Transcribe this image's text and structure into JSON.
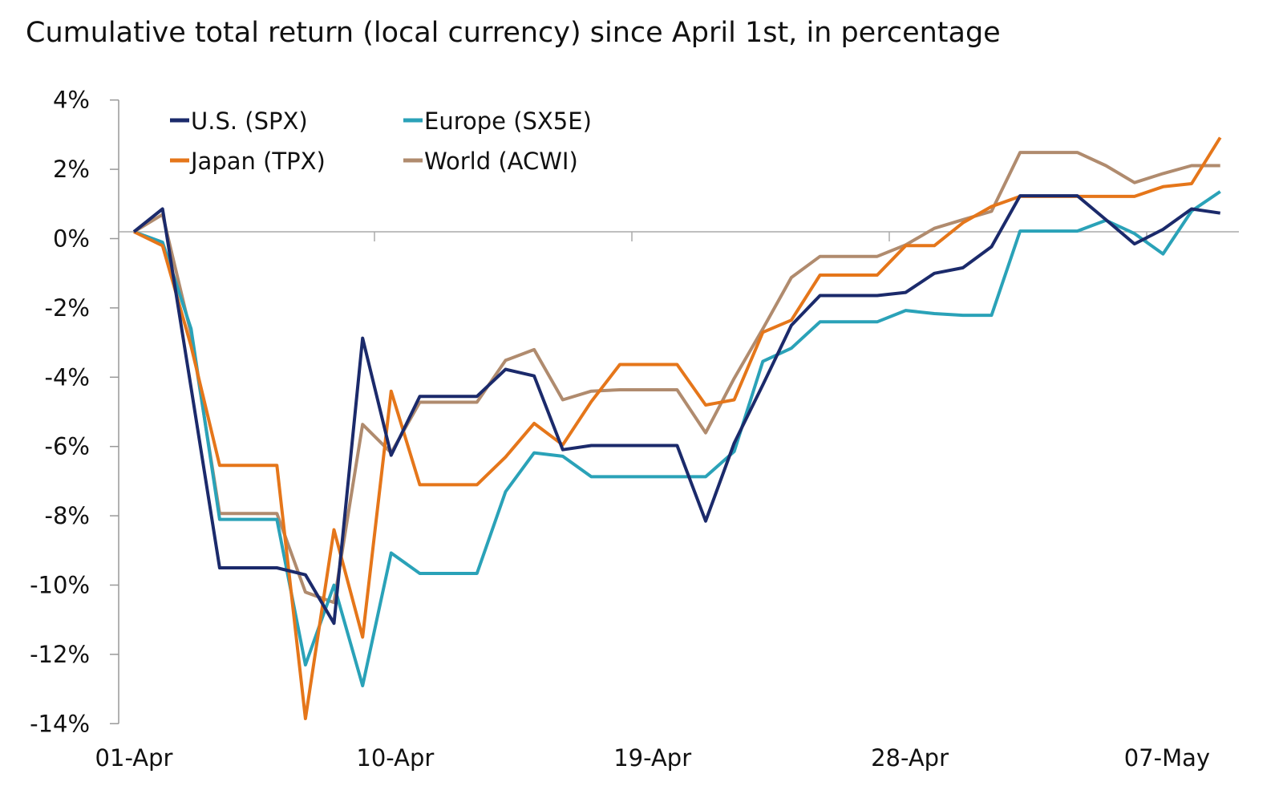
{
  "chart_data": {
    "type": "line",
    "title": "Cumulative total return (local currency) since April 1st, in percentage",
    "xlabel": "",
    "ylabel": "",
    "ylim": [
      -14,
      4
    ],
    "y_ticks": [
      "4%",
      "2%",
      "0%",
      "-2%",
      "-4%",
      "-6%",
      "-8%",
      "-10%",
      "-12%",
      "-14%"
    ],
    "y_tick_values": [
      4,
      2,
      0,
      -2,
      -4,
      -6,
      -8,
      -10,
      -12,
      -14
    ],
    "x_ticks": [
      "01-Apr",
      "10-Apr",
      "19-Apr",
      "28-Apr",
      "07-May"
    ],
    "x_tick_index": [
      0,
      9,
      18,
      27,
      36
    ],
    "grid": false,
    "legend_position": "top-left",
    "x": [
      "01-Apr",
      "02-Apr",
      "03-Apr",
      "04-Apr",
      "05-Apr",
      "06-Apr",
      "07-Apr",
      "08-Apr",
      "09-Apr",
      "10-Apr",
      "11-Apr",
      "12-Apr",
      "13-Apr",
      "14-Apr",
      "15-Apr",
      "16-Apr",
      "17-Apr",
      "18-Apr",
      "19-Apr",
      "20-Apr",
      "21-Apr",
      "22-Apr",
      "23-Apr",
      "24-Apr",
      "25-Apr",
      "26-Apr",
      "27-Apr",
      "28-Apr",
      "29-Apr",
      "30-Apr",
      "01-May",
      "02-May",
      "03-May",
      "04-May",
      "05-May",
      "06-May",
      "07-May",
      "08-May",
      "09-May"
    ],
    "series": [
      {
        "name": "U.S. (SPX)",
        "color": "#1b2a6b",
        "values": [
          0,
          0.66,
          -4.5,
          -9.7,
          -9.7,
          -9.7,
          -9.9,
          -11.3,
          -3.07,
          -6.45,
          -4.75,
          -4.75,
          -4.75,
          -3.97,
          -4.16,
          -6.29,
          -6.17,
          -6.17,
          -6.17,
          -6.17,
          -8.35,
          -6.1,
          -4.42,
          -2.7,
          -1.84,
          -1.84,
          -1.84,
          -1.75,
          -1.2,
          -1.04,
          -0.43,
          1.04,
          1.04,
          1.04,
          0.35,
          -0.35,
          0.07,
          0.66,
          0.54
        ]
      },
      {
        "name": "Europe (SX5E)",
        "color": "#2aa2b8",
        "values": [
          0,
          -0.3,
          -2.8,
          -8.3,
          -8.3,
          -8.3,
          -12.5,
          -10.2,
          -13.1,
          -9.27,
          -9.86,
          -9.86,
          -9.86,
          -7.5,
          -6.38,
          -6.48,
          -7.07,
          -7.07,
          -7.07,
          -7.07,
          -7.07,
          -6.34,
          -3.74,
          -3.36,
          -2.6,
          -2.6,
          -2.6,
          -2.27,
          -2.36,
          -2.41,
          -2.41,
          0.02,
          0.02,
          0.02,
          0.33,
          -0.05,
          -0.64,
          0.6,
          1.16
        ]
      },
      {
        "name": "Japan (TPX)",
        "color": "#e5761a",
        "values": [
          0,
          -0.4,
          -3.3,
          -6.74,
          -6.74,
          -6.74,
          -14.05,
          -8.6,
          -11.7,
          -4.6,
          -7.3,
          -7.3,
          -7.3,
          -6.5,
          -5.53,
          -6.15,
          -4.9,
          -3.83,
          -3.83,
          -3.83,
          -5.0,
          -4.85,
          -2.9,
          -2.55,
          -1.25,
          -1.25,
          -1.25,
          -0.4,
          -0.4,
          0.26,
          0.73,
          1.02,
          1.02,
          1.02,
          1.02,
          1.02,
          1.3,
          1.39,
          2.72
        ]
      },
      {
        "name": "World (ACWI)",
        "color": "#b08b6e",
        "values": [
          0,
          0.5,
          -2.95,
          -8.13,
          -8.13,
          -8.13,
          -10.4,
          -10.7,
          -5.56,
          -6.38,
          -4.92,
          -4.92,
          -4.92,
          -3.71,
          -3.4,
          -4.85,
          -4.6,
          -4.56,
          -4.56,
          -4.56,
          -5.8,
          -4.23,
          -2.8,
          -1.32,
          -0.71,
          -0.71,
          -0.71,
          -0.38,
          0.1,
          0.35,
          0.59,
          2.29,
          2.29,
          2.29,
          1.91,
          1.42,
          1.68,
          1.91,
          1.91
        ]
      }
    ]
  }
}
